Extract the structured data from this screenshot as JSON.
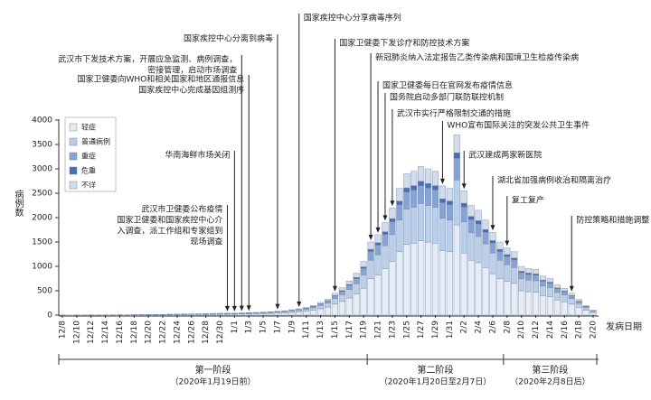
{
  "chart_data": {
    "type": "stacked_bar",
    "y_label": "病例数",
    "x_label": "发病日期",
    "categories": [
      "12/8",
      null,
      "12/10",
      null,
      "12/12",
      null,
      "12/14",
      null,
      "12/16",
      null,
      "12/18",
      null,
      "12/20",
      null,
      "12/22",
      null,
      "12/24",
      null,
      "12/26",
      null,
      "12/28",
      null,
      "12/30",
      null,
      "1/1",
      null,
      "1/3",
      null,
      "1/5",
      null,
      "1/7",
      null,
      "1/9",
      null,
      "1/11",
      null,
      "1/13",
      null,
      "1/15",
      null,
      "1/17",
      null,
      "1/19",
      null,
      "1/21",
      null,
      "1/23",
      null,
      "1/25",
      null,
      "1/27",
      null,
      "1/29",
      null,
      "1/31",
      null,
      "2/2",
      null,
      "2/4",
      null,
      "2/6",
      null,
      "2/8",
      null,
      "2/10",
      null,
      "2/12",
      null,
      "2/14",
      null,
      "2/16",
      null,
      "2/18",
      null,
      "2/20"
    ],
    "series": [
      {
        "name": "轻症",
        "color": "#e6edf6",
        "values": [
          1,
          1,
          2,
          1,
          2,
          2,
          3,
          3,
          4,
          3,
          5,
          5,
          6,
          7,
          8,
          9,
          10,
          11,
          13,
          14,
          15,
          18,
          19,
          20,
          20,
          23,
          25,
          28,
          30,
          35,
          40,
          45,
          55,
          65,
          80,
          100,
          130,
          165,
          225,
          280,
          350,
          430,
          550,
          750,
          825,
          950,
          1100,
          1300,
          1450,
          1475,
          1525,
          1500,
          1475,
          1325,
          1300,
          1850,
          1275,
          1125,
          1075,
          975,
          850,
          750,
          690,
          650,
          500,
          480,
          470,
          400,
          375,
          310,
          275,
          225,
          160,
          100,
          50
        ]
      },
      {
        "name": "普通病例",
        "color": "#bccfe8",
        "values": [
          1,
          0,
          1,
          1,
          1,
          1,
          1,
          2,
          2,
          2,
          2,
          3,
          3,
          4,
          4,
          5,
          5,
          6,
          6,
          7,
          8,
          9,
          10,
          10,
          10,
          11,
          13,
          14,
          15,
          18,
          20,
          23,
          28,
          33,
          40,
          50,
          65,
          83,
          113,
          140,
          175,
          215,
          275,
          375,
          413,
          475,
          550,
          650,
          725,
          738,
          763,
          750,
          738,
          663,
          650,
          925,
          638,
          563,
          538,
          488,
          425,
          375,
          345,
          325,
          250,
          240,
          235,
          200,
          188,
          155,
          138,
          113,
          80,
          50,
          25
        ]
      },
      {
        "name": "重症",
        "color": "#86a3d1",
        "values": [
          0,
          0,
          0,
          0,
          0,
          0,
          1,
          1,
          1,
          1,
          1,
          1,
          1,
          2,
          2,
          2,
          2,
          3,
          3,
          3,
          4,
          4,
          5,
          5,
          5,
          5,
          6,
          7,
          7,
          8,
          10,
          11,
          13,
          16,
          19,
          24,
          31,
          40,
          54,
          67,
          84,
          103,
          132,
          180,
          198,
          228,
          264,
          312,
          348,
          354,
          366,
          360,
          354,
          318,
          312,
          444,
          306,
          270,
          258,
          234,
          204,
          180,
          166,
          156,
          120,
          115,
          113,
          96,
          90,
          74,
          66,
          54,
          38,
          24,
          12
        ]
      },
      {
        "name": "危重",
        "color": "#4b6fae",
        "values": [
          0,
          0,
          0,
          0,
          0,
          0,
          0,
          0,
          0,
          0,
          0,
          0,
          0,
          0,
          0,
          1,
          1,
          1,
          1,
          1,
          1,
          1,
          1,
          1,
          1,
          1,
          2,
          2,
          2,
          2,
          2,
          3,
          3,
          4,
          5,
          6,
          8,
          10,
          14,
          17,
          21,
          26,
          33,
          45,
          50,
          57,
          66,
          78,
          87,
          89,
          92,
          90,
          89,
          80,
          78,
          111,
          77,
          68,
          65,
          59,
          51,
          45,
          41,
          39,
          30,
          29,
          28,
          24,
          23,
          19,
          17,
          14,
          10,
          6,
          3
        ]
      },
      {
        "name": "不详",
        "color": "#d3ddea",
        "values": [
          0,
          0,
          0,
          0,
          1,
          0,
          0,
          0,
          1,
          0,
          1,
          1,
          2,
          1,
          1,
          1,
          2,
          1,
          2,
          3,
          2,
          3,
          3,
          4,
          4,
          5,
          4,
          4,
          6,
          7,
          8,
          8,
          11,
          12,
          16,
          20,
          26,
          32,
          44,
          56,
          70,
          86,
          110,
          150,
          164,
          190,
          220,
          260,
          290,
          294,
          304,
          300,
          294,
          264,
          260,
          370,
          254,
          224,
          214,
          194,
          170,
          150,
          138,
          130,
          100,
          96,
          94,
          80,
          74,
          62,
          54,
          44,
          32,
          20,
          10
        ]
      }
    ],
    "ylim": [
      0,
      4000
    ],
    "yticks": [
      0,
      500,
      1000,
      1500,
      2000,
      2500,
      3000,
      3500,
      4000
    ],
    "grid": false,
    "annotations": [
      {
        "lines": [
          "武汉市卫健委公布疫情",
          "国家卫健委和国家疾控中心介",
          "入调查，派工作组和专家组到",
          "现场调查"
        ]
      },
      {
        "lines": [
          "华南海鲜市场关闭"
        ]
      },
      {
        "lines": [
          "武汉市下发技术方案，开展应急监测、病例调查，",
          "密接管理，启动市场调查"
        ]
      },
      {
        "lines": [
          "国家卫健委向WHO和相关国家和地区通报信息",
          "国家疾控中心完成基因组测序"
        ]
      },
      {
        "lines": [
          "国家疾控中心分离到病毒"
        ]
      },
      {
        "lines": [
          "国家疾控中心分享病毒序列"
        ]
      },
      {
        "lines": [
          "国家卫健委下发诊疗和防控技术方案"
        ]
      },
      {
        "lines": [
          "新冠肺炎纳入法定报告乙类传染病和国境卫生检疫传染病"
        ]
      },
      {
        "lines": [
          "国家卫健委每日在官网发布疫情信息"
        ]
      },
      {
        "lines": [
          "国务院启动多部门联防联控机制"
        ]
      },
      {
        "lines": [
          "武汉市实行严格限制交通的措施"
        ]
      },
      {
        "lines": [
          "WHO宣布国际关注的突发公共卫生事件"
        ]
      },
      {
        "lines": [
          "武汉建成两家新医院"
        ]
      },
      {
        "lines": [
          "湖北省加强病例收治和隔离治疗"
        ]
      },
      {
        "lines": [
          "复工复产"
        ]
      },
      {
        "lines": [
          "防控策略和措施调整"
        ]
      }
    ],
    "phases": [
      {
        "name": "第一阶段",
        "period": "（2020年1月19日前）"
      },
      {
        "name": "第二阶段",
        "period": "（2020年1月20日至2月7日）"
      },
      {
        "name": "第三阶段",
        "period": "（2020年2月8日后）"
      }
    ]
  }
}
